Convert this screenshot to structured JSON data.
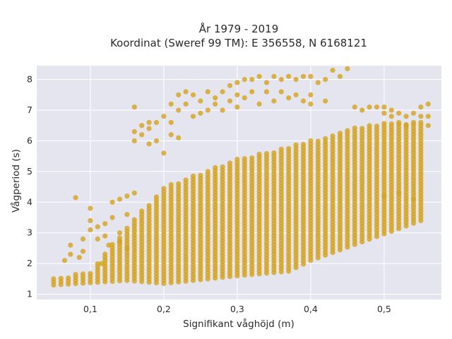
{
  "chart_data": {
    "type": "scatter",
    "title_line1": "År 1979 - 2019",
    "title_line2": "Koordinat (Sweref 99 TM): E 356558, N 6168121",
    "xlabel": "Signifikant våghöjd (m)",
    "ylabel": "Vågperiod (s)",
    "xlim": [
      0.027,
      0.578
    ],
    "ylim": [
      0.83,
      8.45
    ],
    "xticks": [
      0.1,
      0.2,
      0.3,
      0.4,
      0.5
    ],
    "xtick_labels": [
      "0,1",
      "0,2",
      "0,3",
      "0,4",
      "0,5"
    ],
    "yticks": [
      1,
      2,
      3,
      4,
      5,
      6,
      7,
      8
    ],
    "ytick_labels": [
      "1",
      "2",
      "3",
      "4",
      "5",
      "6",
      "7",
      "8"
    ],
    "grid": true,
    "marker_color": "#d4a31f",
    "background_color": "#e5e5f0",
    "columns": {
      "x_start": 0.05,
      "x_end": 0.55,
      "step": 0.01,
      "y_step": 0.1,
      "dense_bottom": {
        "x": [
          0.05,
          0.15,
          0.2,
          0.3,
          0.37,
          0.4,
          0.55
        ],
        "y": [
          1.3,
          1.45,
          1.35,
          1.6,
          1.75,
          2.1,
          3.4
        ]
      },
      "dense_top": {
        "x": [
          0.05,
          0.1,
          0.15,
          0.2,
          0.3,
          0.4,
          0.45,
          0.5,
          0.55
        ],
        "y": [
          1.5,
          1.75,
          3.2,
          4.5,
          5.4,
          6.0,
          6.4,
          6.6,
          6.6
        ]
      }
    },
    "extra_points": {
      "x": [
        0.065,
        0.073,
        0.073,
        0.08,
        0.085,
        0.09,
        0.09,
        0.1,
        0.1,
        0.1,
        0.11,
        0.11,
        0.115,
        0.12,
        0.12,
        0.125,
        0.13,
        0.13,
        0.14,
        0.14,
        0.14,
        0.15,
        0.15,
        0.15,
        0.16,
        0.16,
        0.16,
        0.16,
        0.17,
        0.17,
        0.18,
        0.18,
        0.18,
        0.19,
        0.19,
        0.2,
        0.2,
        0.21,
        0.21,
        0.21,
        0.22,
        0.22,
        0.22,
        0.23,
        0.23,
        0.24,
        0.24,
        0.25,
        0.25,
        0.26,
        0.26,
        0.27,
        0.27,
        0.28,
        0.28,
        0.29,
        0.29,
        0.3,
        0.3,
        0.3,
        0.31,
        0.31,
        0.32,
        0.32,
        0.33,
        0.33,
        0.34,
        0.34,
        0.35,
        0.35,
        0.36,
        0.36,
        0.37,
        0.37,
        0.38,
        0.38,
        0.39,
        0.39,
        0.4,
        0.4,
        0.4,
        0.41,
        0.42,
        0.42,
        0.43,
        0.44,
        0.45,
        0.46,
        0.47,
        0.48,
        0.49,
        0.5,
        0.5,
        0.51,
        0.51,
        0.52,
        0.52,
        0.53,
        0.53,
        0.54,
        0.54,
        0.55,
        0.55,
        0.56,
        0.56,
        0.56,
        0.5,
        0.52,
        0.54
      ],
      "y": [
        2.1,
        2.3,
        2.6,
        4.15,
        2.2,
        2.4,
        2.8,
        3.1,
        3.4,
        3.8,
        2.8,
        3.2,
        2.0,
        2.9,
        3.3,
        2.6,
        3.5,
        4.0,
        2.7,
        3.0,
        4.1,
        2.5,
        3.6,
        4.2,
        6.0,
        6.3,
        7.1,
        4.3,
        6.2,
        6.5,
        5.9,
        6.4,
        6.6,
        6.0,
        6.6,
        5.6,
        6.8,
        6.6,
        6.2,
        7.2,
        7.0,
        7.5,
        6.1,
        7.2,
        7.6,
        6.8,
        7.5,
        7.3,
        6.9,
        7.6,
        7.0,
        7.4,
        7.2,
        7.6,
        7.0,
        7.8,
        7.3,
        7.9,
        7.1,
        7.5,
        8.0,
        7.4,
        8.0,
        7.6,
        8.1,
        7.2,
        7.9,
        7.6,
        8.1,
        7.3,
        8.0,
        7.6,
        8.1,
        7.4,
        8.0,
        7.5,
        8.1,
        7.3,
        8.1,
        7.5,
        7.2,
        7.9,
        8.0,
        7.3,
        8.3,
        8.1,
        8.35,
        7.1,
        7.0,
        7.1,
        7.1,
        7.1,
        6.9,
        7.0,
        6.8,
        6.9,
        6.6,
        6.8,
        6.5,
        6.9,
        6.6,
        7.1,
        6.8,
        7.2,
        6.8,
        6.5,
        4.2,
        4.3,
        4.1
      ]
    }
  }
}
